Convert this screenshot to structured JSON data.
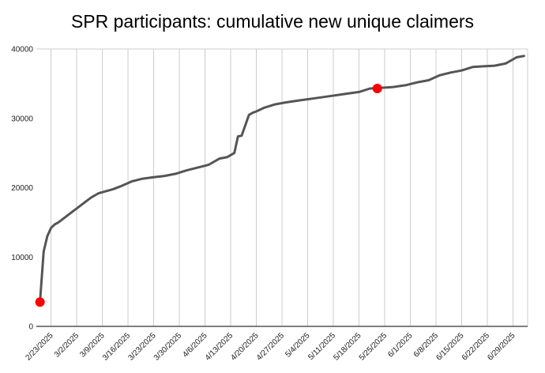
{
  "chart_data": {
    "type": "line",
    "title": "SPR participants: cumulative new unique claimers",
    "xlabel": "",
    "ylabel": "",
    "ylim": [
      0,
      40000
    ],
    "yticks": [
      0,
      10000,
      20000,
      30000,
      40000
    ],
    "ytick_labels": [
      "0",
      "10000",
      "20000",
      "30000",
      "40000"
    ],
    "x_start": "2025-02-19",
    "x_end": "2025-07-03",
    "xtick_labels": [
      "2/23/2025",
      "3/2/2025",
      "3/9/2025",
      "3/16/2025",
      "3/23/2025",
      "3/30/2025",
      "4/6/2025",
      "4/13/2025",
      "4/20/2025",
      "4/27/2025",
      "5/4/2025",
      "5/11/2025",
      "5/18/2025",
      "5/25/2025",
      "6/1/2025",
      "6/8/2025",
      "6/15/2025",
      "6/22/2025",
      "6/29/2025"
    ],
    "grid": "vertical lines at each tick, horizontal line at top",
    "colors": {
      "line": "#555555",
      "marker": "#ff0000",
      "grid": "#cccccc",
      "axis": "#333333"
    },
    "series": [
      {
        "x": [
          "2025-02-20",
          "2025-02-21",
          "2025-02-22",
          "2025-02-23",
          "2025-02-24",
          "2025-02-25",
          "2025-02-26",
          "2025-02-27",
          "2025-02-28",
          "2025-03-01",
          "2025-03-02",
          "2025-03-04",
          "2025-03-06",
          "2025-03-08",
          "2025-03-10",
          "2025-03-12",
          "2025-03-14",
          "2025-03-17",
          "2025-03-20",
          "2025-03-23",
          "2025-03-26",
          "2025-03-29",
          "2025-04-01",
          "2025-04-04",
          "2025-04-07",
          "2025-04-10",
          "2025-04-12",
          "2025-04-14",
          "2025-04-15",
          "2025-04-16",
          "2025-04-17",
          "2025-04-18",
          "2025-04-19",
          "2025-04-20",
          "2025-04-22",
          "2025-04-25",
          "2025-04-28",
          "2025-05-02",
          "2025-05-06",
          "2025-05-10",
          "2025-05-14",
          "2025-05-18",
          "2025-05-21",
          "2025-05-24",
          "2025-05-27",
          "2025-05-31",
          "2025-06-03",
          "2025-06-06",
          "2025-06-09",
          "2025-06-12",
          "2025-06-15",
          "2025-06-18",
          "2025-06-21",
          "2025-06-24",
          "2025-06-27",
          "2025-06-30",
          "2025-07-02"
        ],
        "y": [
          3500,
          10800,
          13000,
          14200,
          14700,
          15000,
          15400,
          15800,
          16200,
          16600,
          17000,
          17800,
          18600,
          19200,
          19500,
          19800,
          20200,
          20900,
          21300,
          21500,
          21700,
          22000,
          22500,
          22900,
          23300,
          24200,
          24400,
          25000,
          27400,
          27500,
          29000,
          30500,
          30800,
          31000,
          31500,
          32000,
          32300,
          32600,
          32900,
          33200,
          33500,
          33800,
          34300,
          34400,
          34500,
          34800,
          35200,
          35500,
          36200,
          36600,
          36900,
          37400,
          37500,
          37600,
          37900,
          38800,
          39000
        ]
      }
    ],
    "highlight_points": [
      {
        "x": "2025-02-20",
        "y": 3500
      },
      {
        "x": "2025-05-23",
        "y": 34300
      }
    ]
  }
}
